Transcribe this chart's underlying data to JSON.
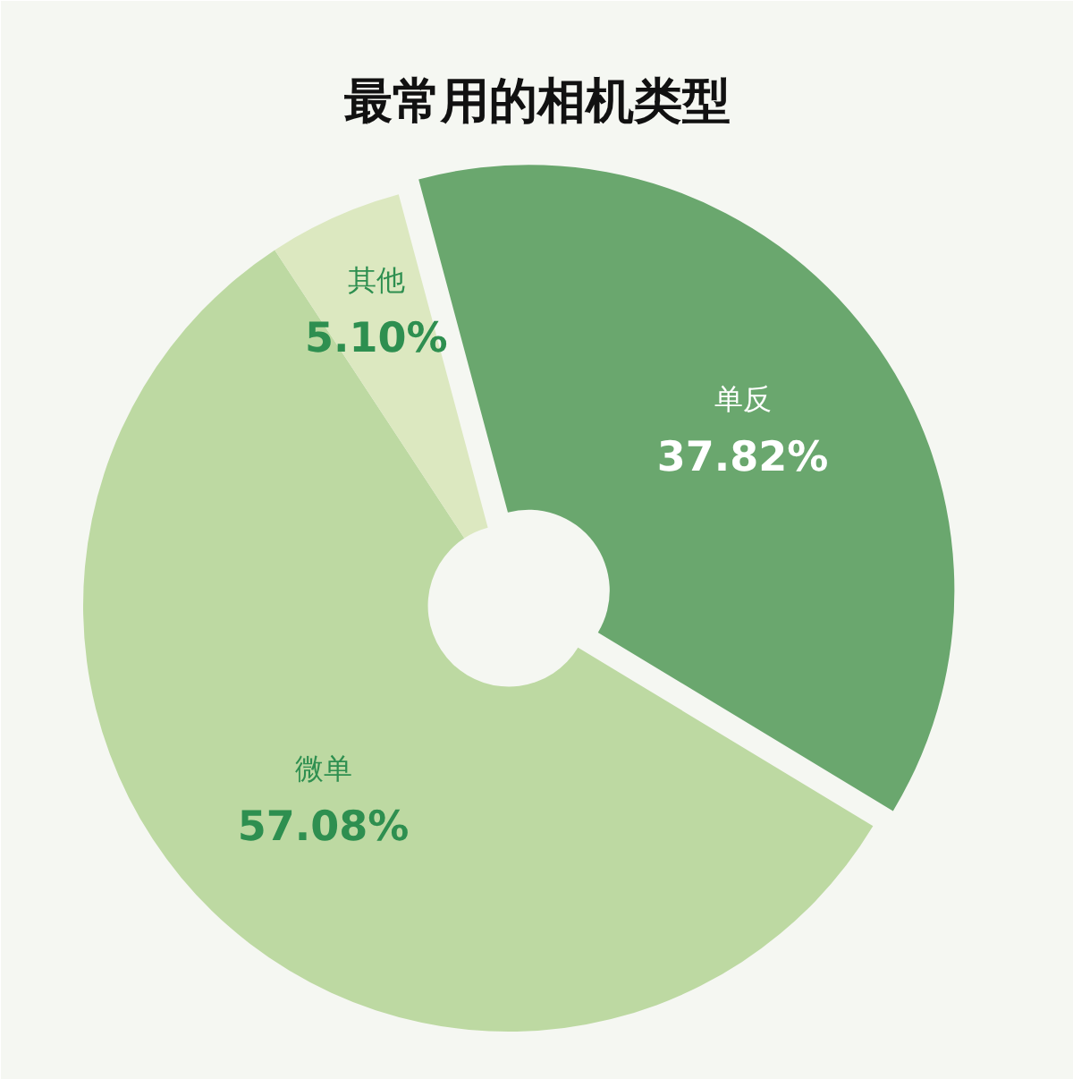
{
  "chart_data": {
    "type": "donut",
    "title": "最常用的相机类型",
    "categories": [
      "单反",
      "微单",
      "其他"
    ],
    "values": [
      37.82,
      57.08,
      5.1
    ],
    "colors": [
      "#6aa76e",
      "#bdd9a2",
      "#dce8c0"
    ],
    "value_labels": [
      "37.82%",
      "57.08%",
      "5.10%"
    ]
  }
}
